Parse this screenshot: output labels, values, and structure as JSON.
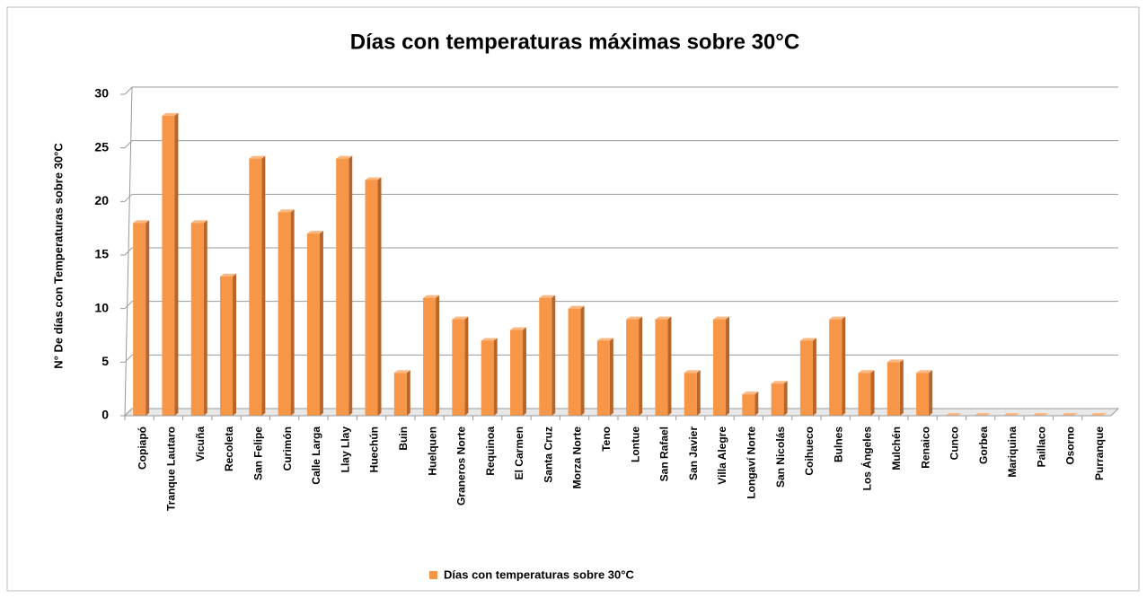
{
  "chart_data": {
    "type": "bar",
    "title": "Días con temperaturas  máximas sobre 30°C",
    "y_label": "N° De días con Temperaturas sobre 30°C",
    "categories": [
      "Copiapó",
      "Tranque Lautaro",
      "Vicuña",
      "Recoleta",
      "San Felipe",
      "Curimón",
      "Calle Larga",
      "Llay Llay",
      "Huechún",
      "Buin",
      "Huelquen",
      "Graneros Norte",
      "Requinoa",
      "El Carmen",
      "Santa Cruz",
      "Morza Norte",
      "Teno",
      "Lontue",
      "San Rafael",
      "San Javier",
      "Villa Alegre",
      "Longaví Norte",
      "San Nicolás",
      "Coihueco",
      "Bulnes",
      "Los Ángeles",
      "Mulchén",
      "Renaico",
      "Cunco",
      "Gorbea",
      "Mariquina",
      "Paillaco",
      "Osorno",
      "Purranque"
    ],
    "series": [
      {
        "name": "Días con temperaturas sobre 30°C",
        "color": "#f79646",
        "values": [
          18,
          28,
          18,
          13,
          24,
          19,
          17,
          24,
          22,
          4,
          11,
          9,
          7,
          8,
          11,
          10,
          7,
          9,
          9,
          4,
          9,
          2,
          3,
          7,
          9,
          4,
          5,
          4,
          0,
          0,
          0,
          0,
          0,
          0
        ]
      }
    ],
    "ylim": [
      0,
      30
    ],
    "yticks": [
      0,
      5,
      10,
      15,
      20,
      25,
      30
    ],
    "grid": true,
    "legend": "bottom"
  }
}
